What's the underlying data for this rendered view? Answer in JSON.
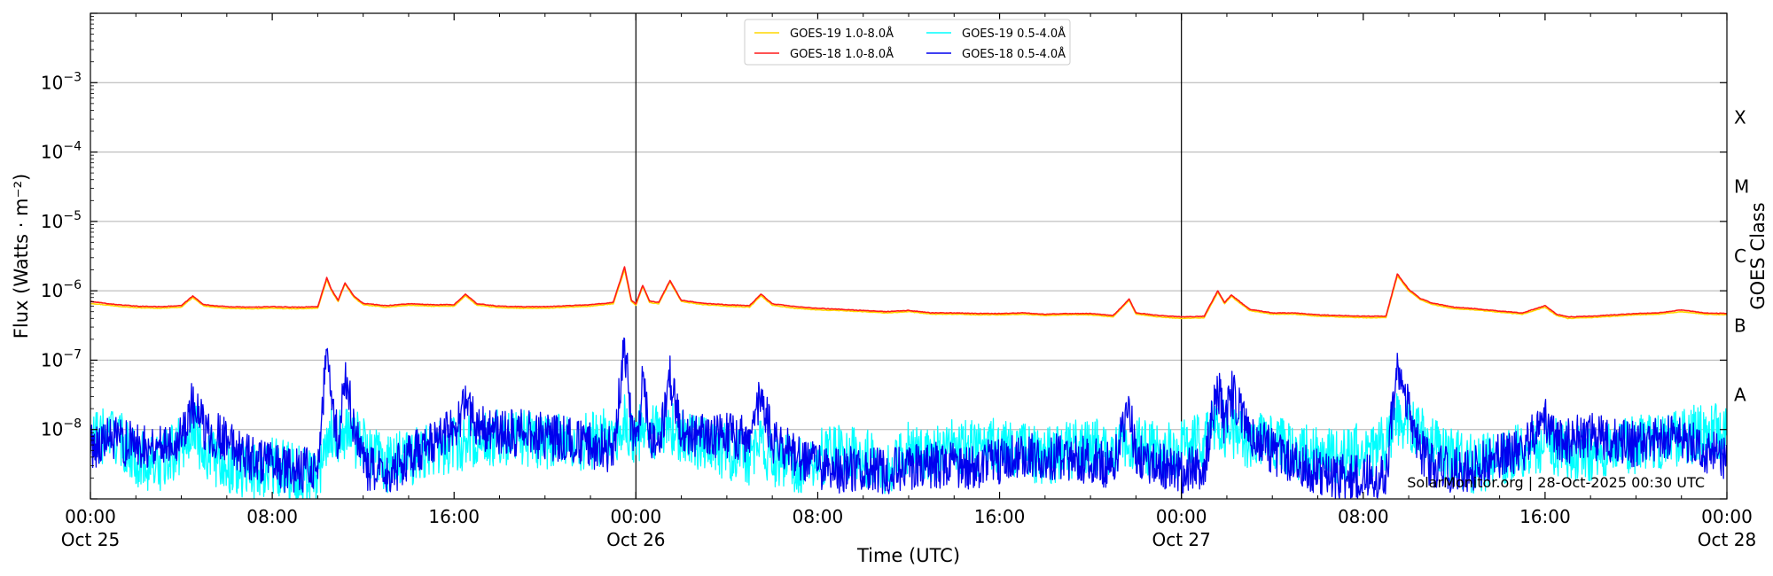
{
  "chart_data": {
    "type": "line",
    "title": "",
    "xlabel": "Time (UTC)",
    "ylabel": "Flux (Watts · m⁻²)",
    "y2label": "GOES Class",
    "yscale": "log",
    "ylim": [
      1e-09,
      0.01
    ],
    "xlim_hours": [
      0,
      72
    ],
    "x_ticks": [
      {
        "hour": 0,
        "line1": "00:00",
        "line2": "Oct 25"
      },
      {
        "hour": 8,
        "line1": "08:00",
        "line2": ""
      },
      {
        "hour": 16,
        "line1": "16:00",
        "line2": ""
      },
      {
        "hour": 24,
        "line1": "00:00",
        "line2": "Oct 26"
      },
      {
        "hour": 32,
        "line1": "08:00",
        "line2": ""
      },
      {
        "hour": 40,
        "line1": "16:00",
        "line2": ""
      },
      {
        "hour": 48,
        "line1": "00:00",
        "line2": "Oct 27"
      },
      {
        "hour": 56,
        "line1": "08:00",
        "line2": ""
      },
      {
        "hour": 64,
        "line1": "16:00",
        "line2": ""
      },
      {
        "hour": 72,
        "line1": "00:00",
        "line2": "Oct 28"
      }
    ],
    "y_ticks": [
      {
        "exp": -8,
        "label": "10",
        "sup": "−8"
      },
      {
        "exp": -7,
        "label": "10",
        "sup": "−7"
      },
      {
        "exp": -6,
        "label": "10",
        "sup": "−6"
      },
      {
        "exp": -5,
        "label": "10",
        "sup": "−5"
      },
      {
        "exp": -4,
        "label": "10",
        "sup": "−4"
      },
      {
        "exp": -3,
        "label": "10",
        "sup": "−3"
      }
    ],
    "goes_classes": [
      {
        "label": "A",
        "exp": -7.5
      },
      {
        "label": "B",
        "exp": -6.5
      },
      {
        "label": "C",
        "exp": -5.5
      },
      {
        "label": "M",
        "exp": -4.5
      },
      {
        "label": "X",
        "exp": -3.5
      }
    ],
    "day_boundaries_hours": [
      24,
      48
    ],
    "grid": "horizontal",
    "legend_position": "top-center",
    "watermark": "SolarMonitor.org | 28-Oct-2025 00:30 UTC",
    "series": [
      {
        "name": "GOES-19 1.0-8.0Å",
        "color": "#ffd700",
        "x": [
          0,
          1,
          2,
          3,
          4,
          4.5,
          5,
          6,
          7,
          8,
          9,
          10,
          10.4,
          10.6,
          10.9,
          11.2,
          11.6,
          12,
          13,
          14,
          15,
          16,
          16.5,
          17,
          18,
          19,
          20,
          21,
          22,
          23,
          23.5,
          23.8,
          24,
          24.3,
          24.6,
          25,
          25.5,
          26,
          27,
          28,
          29,
          29.5,
          30,
          31,
          32,
          33,
          34,
          35,
          36,
          37,
          38,
          39,
          40,
          41,
          42,
          43,
          44,
          45,
          45.7,
          46,
          47,
          48,
          49,
          49.6,
          49.9,
          50.2,
          51,
          52,
          53,
          54,
          55,
          56,
          57,
          57.5,
          58,
          58.5,
          59,
          60,
          61,
          62,
          63,
          64,
          64.5,
          65,
          66,
          67,
          68,
          69,
          70,
          71,
          72
        ],
        "y": [
          6.6e-07,
          6.1e-07,
          5.7e-07,
          5.6e-07,
          5.8e-07,
          8e-07,
          6e-07,
          5.6e-07,
          5.5e-07,
          5.6e-07,
          5.5e-07,
          5.6e-07,
          1.45e-06,
          1e-06,
          7e-07,
          1.25e-06,
          8e-07,
          6.3e-07,
          5.8e-07,
          6.2e-07,
          6e-07,
          6e-07,
          8.5e-07,
          6.2e-07,
          5.7e-07,
          5.6e-07,
          5.6e-07,
          5.8e-07,
          6e-07,
          6.5e-07,
          2e-06,
          7e-07,
          6.2e-07,
          1.15e-06,
          6.8e-07,
          6.5e-07,
          1.35e-06,
          7e-07,
          6.3e-07,
          6e-07,
          5.8e-07,
          8.5e-07,
          6.2e-07,
          5.6e-07,
          5.3e-07,
          5.2e-07,
          5e-07,
          4.8e-07,
          5e-07,
          4.6e-07,
          4.6e-07,
          4.5e-07,
          4.5e-07,
          4.6e-07,
          4.4e-07,
          4.5e-07,
          4.5e-07,
          4.2e-07,
          7.3e-07,
          4.6e-07,
          4.2e-07,
          4e-07,
          4.1e-07,
          9.5e-07,
          6.5e-07,
          8.3e-07,
          5.2e-07,
          4.6e-07,
          4.6e-07,
          4.3e-07,
          4.2e-07,
          4.1e-07,
          4.1e-07,
          1.65e-06,
          1e-06,
          7.5e-07,
          6.4e-07,
          5.5e-07,
          5.3e-07,
          4.9e-07,
          4.6e-07,
          5.8e-07,
          4.4e-07,
          4e-07,
          4.1e-07,
          4.3e-07,
          4.5e-07,
          4.6e-07,
          5e-07,
          4.6e-07,
          4.5e-07
        ]
      },
      {
        "name": "GOES-18 1.0-8.0Å",
        "color": "#ff1a1a",
        "x": [
          0,
          1,
          2,
          3,
          4,
          4.5,
          5,
          6,
          7,
          8,
          9,
          10,
          10.4,
          10.6,
          10.9,
          11.2,
          11.6,
          12,
          13,
          14,
          15,
          16,
          16.5,
          17,
          18,
          19,
          20,
          21,
          22,
          23,
          23.5,
          23.8,
          24,
          24.3,
          24.6,
          25,
          25.5,
          26,
          27,
          28,
          29,
          29.5,
          30,
          31,
          32,
          33,
          34,
          35,
          36,
          37,
          38,
          39,
          40,
          41,
          42,
          43,
          44,
          45,
          45.7,
          46,
          47,
          48,
          49,
          49.6,
          49.9,
          50.2,
          51,
          52,
          53,
          54,
          55,
          56,
          57,
          57.5,
          58,
          58.5,
          59,
          60,
          61,
          62,
          63,
          64,
          64.5,
          65,
          66,
          67,
          68,
          69,
          70,
          71,
          72
        ],
        "y": [
          7e-07,
          6.4e-07,
          6e-07,
          5.9e-07,
          6.1e-07,
          8.4e-07,
          6.3e-07,
          5.9e-07,
          5.8e-07,
          5.9e-07,
          5.8e-07,
          5.9e-07,
          1.55e-06,
          1.05e-06,
          7.3e-07,
          1.3e-06,
          8.4e-07,
          6.6e-07,
          6.1e-07,
          6.5e-07,
          6.3e-07,
          6.3e-07,
          9e-07,
          6.5e-07,
          6e-07,
          5.9e-07,
          5.9e-07,
          6.1e-07,
          6.3e-07,
          6.8e-07,
          2.2e-06,
          7.3e-07,
          6.5e-07,
          1.2e-06,
          7.1e-07,
          6.8e-07,
          1.4e-06,
          7.3e-07,
          6.6e-07,
          6.3e-07,
          6.1e-07,
          9e-07,
          6.5e-07,
          5.9e-07,
          5.6e-07,
          5.4e-07,
          5.2e-07,
          5e-07,
          5.2e-07,
          4.8e-07,
          4.8e-07,
          4.7e-07,
          4.7e-07,
          4.8e-07,
          4.6e-07,
          4.7e-07,
          4.7e-07,
          4.4e-07,
          7.6e-07,
          4.8e-07,
          4.4e-07,
          4.2e-07,
          4.3e-07,
          1e-06,
          6.8e-07,
          8.7e-07,
          5.4e-07,
          4.8e-07,
          4.8e-07,
          4.5e-07,
          4.4e-07,
          4.3e-07,
          4.3e-07,
          1.75e-06,
          1.05e-06,
          7.8e-07,
          6.7e-07,
          5.8e-07,
          5.5e-07,
          5.1e-07,
          4.8e-07,
          6.1e-07,
          4.6e-07,
          4.2e-07,
          4.3e-07,
          4.5e-07,
          4.7e-07,
          4.8e-07,
          5.3e-07,
          4.8e-07,
          4.7e-07
        ]
      },
      {
        "name": "GOES-19 0.5-4.0Å",
        "color": "#00ffff",
        "x": [
          0,
          1,
          2,
          3,
          4,
          4.5,
          5,
          6,
          7,
          8,
          9,
          10,
          10.4,
          11.2,
          12,
          13,
          14,
          15,
          16,
          17,
          18,
          19,
          20,
          21,
          22,
          23,
          23.5,
          24,
          24.3,
          25,
          25.5,
          26,
          27,
          28,
          29,
          29.5,
          30,
          31,
          32,
          33,
          34,
          35,
          36,
          37,
          38,
          39,
          40,
          41,
          42,
          43,
          44,
          45,
          45.7,
          46,
          47,
          48,
          49,
          49.6,
          50.2,
          51,
          52,
          53,
          54,
          55,
          56,
          57,
          57.5,
          58,
          59,
          60,
          61,
          62,
          63,
          64,
          65,
          66,
          67,
          68,
          69,
          70,
          71,
          72
        ],
        "y": [
          7e-09,
          9e-09,
          4e-09,
          3e-09,
          6e-09,
          1.2e-08,
          5e-09,
          3e-09,
          2.5e-09,
          3e-09,
          2.5e-09,
          2e-09,
          8e-09,
          9e-09,
          6e-09,
          3e-09,
          4e-09,
          5e-09,
          6e-09,
          7e-09,
          8e-09,
          8e-09,
          7e-09,
          6e-09,
          7e-09,
          8e-09,
          1.2e-08,
          8e-09,
          1e-08,
          9e-09,
          1.1e-08,
          8e-09,
          6e-09,
          5e-09,
          4e-09,
          6e-09,
          4e-09,
          3e-09,
          4e-09,
          5e-09,
          4e-09,
          3e-09,
          5e-09,
          4e-09,
          6e-09,
          5e-09,
          6e-09,
          5e-09,
          4e-09,
          5e-09,
          6e-09,
          5e-09,
          7e-09,
          6e-09,
          5e-09,
          5e-09,
          8e-09,
          1.1e-08,
          1e-08,
          7e-09,
          6e-09,
          5e-09,
          4e-09,
          4e-09,
          5e-09,
          6e-09,
          1.5e-08,
          1.1e-08,
          6e-09,
          4e-09,
          3e-09,
          4e-09,
          5e-09,
          6e-09,
          5e-09,
          4e-09,
          5e-09,
          6e-09,
          7e-09,
          8e-09,
          9e-09,
          1e-08
        ]
      },
      {
        "name": "GOES-18 0.5-4.0Å",
        "color": "#0000ee",
        "x": [
          0,
          1,
          2,
          3,
          4,
          4.5,
          5,
          6,
          7,
          8,
          9,
          10,
          10.4,
          10.6,
          10.9,
          11.2,
          11.6,
          12,
          13,
          14,
          15,
          16,
          16.5,
          17,
          18,
          19,
          20,
          21,
          22,
          23,
          23.5,
          23.8,
          24,
          24.3,
          24.6,
          25,
          25.5,
          26,
          27,
          28,
          29,
          29.5,
          30,
          31,
          32,
          33,
          34,
          35,
          36,
          37,
          38,
          39,
          40,
          41,
          42,
          43,
          44,
          45,
          45.7,
          46,
          47,
          48,
          49,
          49.6,
          49.9,
          50.2,
          51,
          52,
          53,
          54,
          55,
          56,
          57,
          57.5,
          58,
          58.5,
          59,
          60,
          61,
          62,
          63,
          64,
          64.5,
          65,
          66,
          67,
          68,
          69,
          70,
          71,
          72
        ],
        "y": [
          6e-09,
          7e-09,
          6e-09,
          6e-09,
          8e-09,
          2.4e-08,
          1e-08,
          7e-09,
          4e-09,
          3e-09,
          2.5e-09,
          3e-09,
          1.15e-07,
          3e-08,
          6e-09,
          5.5e-08,
          1.2e-08,
          3e-09,
          2e-09,
          4e-09,
          7e-09,
          1e-08,
          2.5e-08,
          1.1e-08,
          9e-09,
          9e-09,
          8e-09,
          7e-09,
          6e-09,
          5e-09,
          1.8e-07,
          1.2e-08,
          5e-09,
          5.5e-08,
          8e-09,
          6e-09,
          5.5e-08,
          1e-08,
          8e-09,
          8e-09,
          7e-09,
          3.2e-08,
          7e-09,
          4e-09,
          3e-09,
          2.5e-09,
          3e-09,
          2.5e-09,
          3e-09,
          3e-09,
          3e-09,
          3e-09,
          3.5e-09,
          4e-09,
          4e-09,
          4e-09,
          3.5e-09,
          3e-09,
          2.5e-08,
          4e-09,
          3e-09,
          2.5e-09,
          3e-09,
          4e-08,
          1.2e-08,
          3.5e-08,
          8e-09,
          5e-09,
          3e-09,
          2.5e-09,
          2e-09,
          2e-09,
          2e-09,
          9.5e-08,
          2e-08,
          5e-09,
          3e-09,
          2.5e-09,
          3e-09,
          4e-09,
          5e-09,
          1.5e-08,
          6e-09,
          7e-09,
          8e-09,
          7e-09,
          6e-09,
          7e-09,
          8e-09,
          5e-09,
          4e-09
        ]
      }
    ]
  }
}
